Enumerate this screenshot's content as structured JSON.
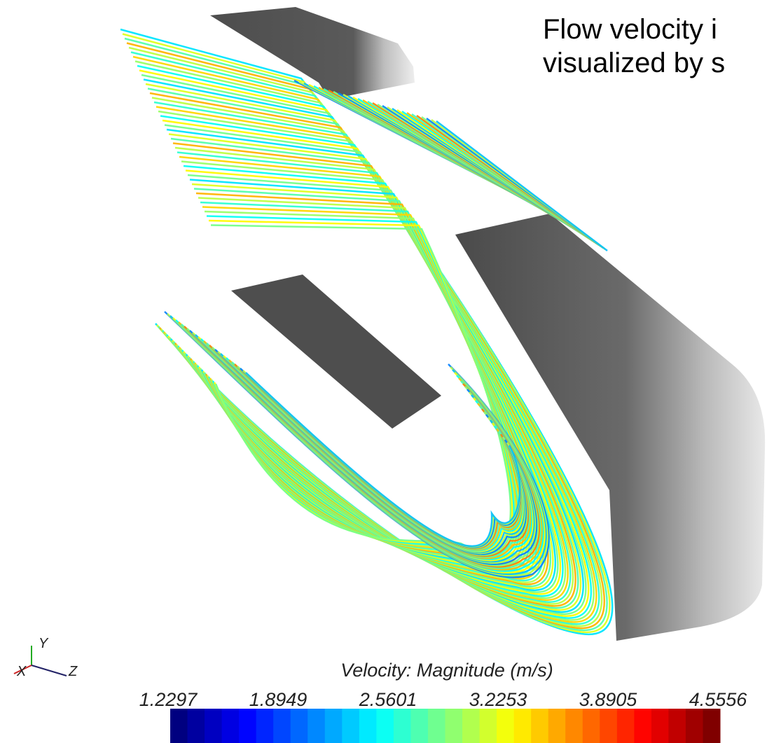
{
  "title": {
    "lines": [
      "Flow velocity i",
      "visualized by s"
    ]
  },
  "colorbar": {
    "title": "Velocity: Magnitude (m/s)",
    "ticks": [
      1.2297,
      1.8949,
      2.5601,
      3.2253,
      3.8905,
      4.5556
    ]
  },
  "axes_triad": {
    "x": "X",
    "y": "Y",
    "z": "Z"
  }
}
